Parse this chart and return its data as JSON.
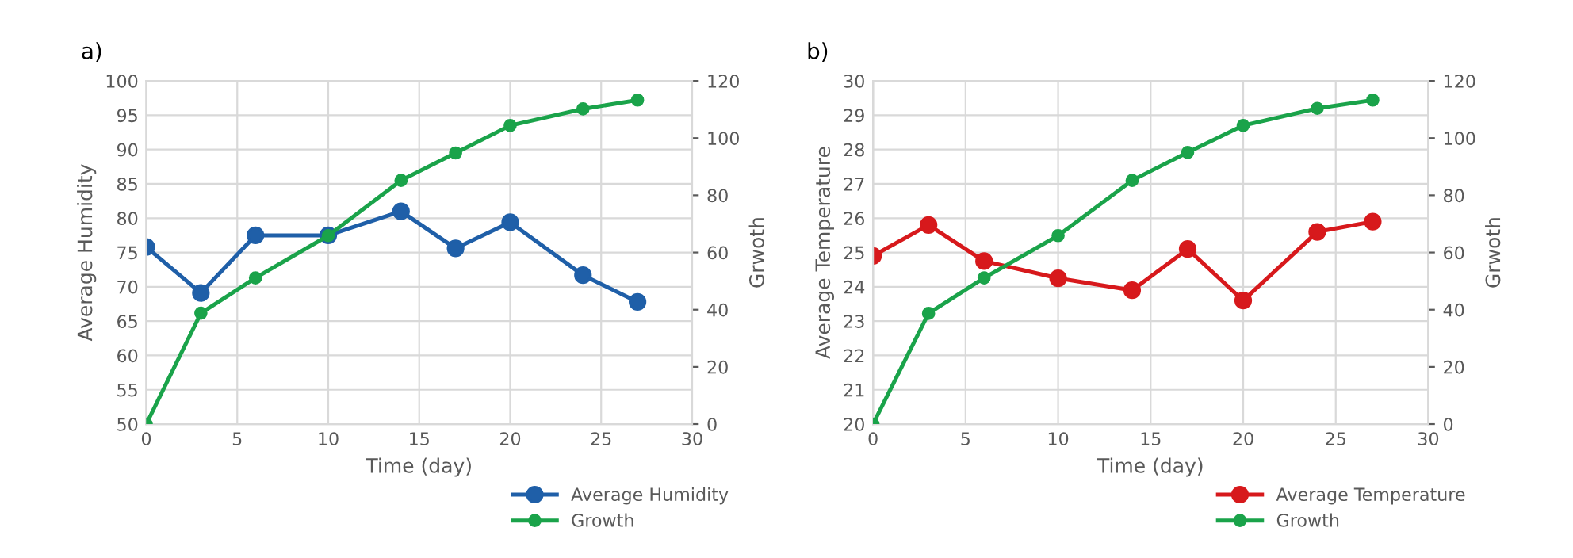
{
  "chart_data": [
    {
      "type": "line",
      "title": "a)",
      "xlabel": "Time (day)",
      "ylabel": "Average Humidity",
      "y2label": "Grwoth",
      "x": [
        0,
        3,
        6,
        10,
        14,
        17,
        20,
        24,
        27
      ],
      "series": [
        {
          "name": "Average Humidity",
          "color": "#1f5fa8",
          "values": [
            75.8,
            69.1,
            77.5,
            77.5,
            81,
            75.6,
            79.4,
            71.7,
            67.8
          ]
        },
        {
          "name": "Growth",
          "color": "#1aa34a",
          "axis": "y2",
          "values": [
            0,
            38.8,
            51.1,
            65.9,
            85.2,
            94.8,
            104.4,
            110.2,
            113.3
          ]
        }
      ],
      "xlim": [
        0,
        30
      ],
      "xticks": [
        0,
        5,
        10,
        15,
        20,
        25,
        30
      ],
      "ylim": [
        50,
        100
      ],
      "yticks": [
        50,
        55,
        60,
        65,
        70,
        75,
        80,
        85,
        90,
        95,
        100
      ],
      "y2lim": [
        0,
        120
      ],
      "y2ticks": [
        0,
        20,
        40,
        60,
        80,
        100,
        120
      ],
      "grid": true,
      "legend": "bottom right",
      "marker": "circle",
      "line_style": "solid"
    },
    {
      "type": "line",
      "title": "b)",
      "xlabel": "Time (day)",
      "ylabel": "Average Temperature",
      "y2label": "Grwoth",
      "x": [
        0,
        3,
        6,
        10,
        14,
        17,
        20,
        24,
        27
      ],
      "series": [
        {
          "name": "Average Temperature",
          "color": "#d7191c",
          "values": [
            24.9,
            25.8,
            24.75,
            24.25,
            23.9,
            25.1,
            23.6,
            25.6,
            25.9
          ]
        },
        {
          "name": "Growth",
          "color": "#1aa34a",
          "axis": "y2",
          "values": [
            0,
            38.7,
            51.1,
            65.9,
            85.2,
            95,
            104.4,
            110.4,
            113.3
          ]
        }
      ],
      "xlim": [
        0,
        30
      ],
      "xticks": [
        0,
        5,
        10,
        15,
        20,
        25,
        30
      ],
      "ylim": [
        20,
        30
      ],
      "yticks": [
        20,
        21,
        22,
        23,
        24,
        25,
        26,
        27,
        28,
        29,
        30
      ],
      "y2lim": [
        0,
        120
      ],
      "y2ticks": [
        0,
        20,
        40,
        60,
        80,
        100,
        120
      ],
      "grid": true,
      "legend": "bottom right",
      "marker": "circle",
      "line_style": "solid"
    }
  ]
}
